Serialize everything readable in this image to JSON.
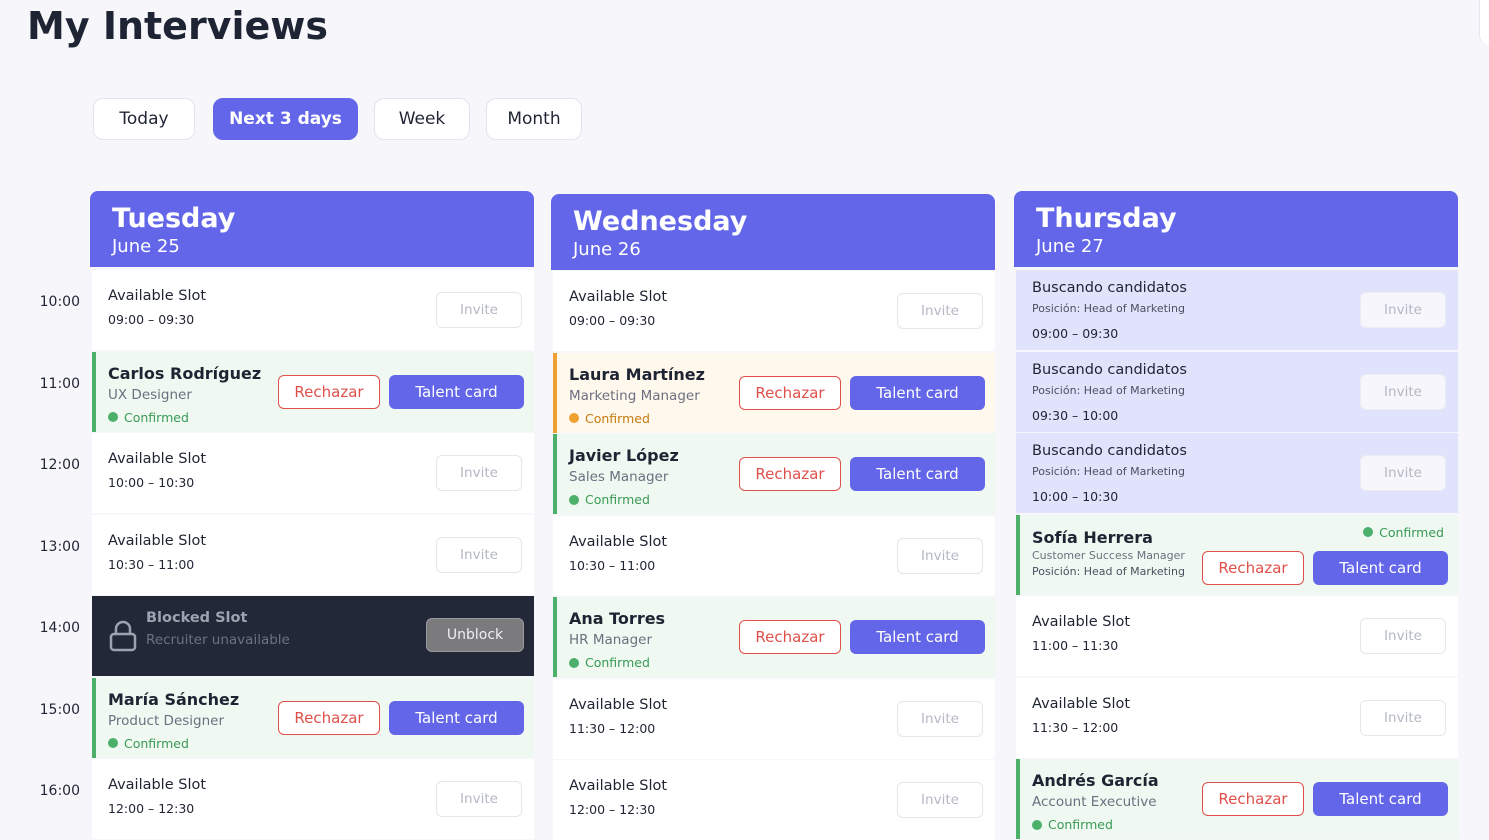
{
  "header": {
    "title": "My Interviews"
  },
  "tabs": [
    {
      "label": "Today",
      "active": false
    },
    {
      "label": "Next 3 days",
      "active": true
    },
    {
      "label": "Week",
      "active": false
    },
    {
      "label": "Month",
      "active": false
    }
  ],
  "times": [
    "10:00",
    "11:00",
    "12:00",
    "13:00",
    "14:00",
    "15:00",
    "16:00"
  ],
  "days": [
    {
      "name": "Tuesday",
      "date": "June 25",
      "slots": [
        {
          "kind": "available",
          "title": "Available Slot",
          "time": "09:00 – 09:30",
          "action": "Invite"
        },
        {
          "kind": "candidate",
          "accent": "#4caf6a",
          "name": "Carlos Rodríguez",
          "role": "UX Designer",
          "status": "Confirmed",
          "reject": "Rechazar",
          "card": "Talent card"
        },
        {
          "kind": "available",
          "title": "Available Slot",
          "time": "10:00 – 10:30",
          "action": "Invite"
        },
        {
          "kind": "available",
          "title": "Available Slot",
          "time": "10:30 – 11:00",
          "action": "Invite"
        },
        {
          "kind": "blocked",
          "title": "Blocked Slot",
          "subtitle": "Recruiter unavailable",
          "action": "Unblock"
        },
        {
          "kind": "candidate",
          "accent": "#4caf6a",
          "name": "María Sánchez",
          "role": "Product Designer",
          "status": "Confirmed",
          "reject": "Rechazar",
          "card": "Talent card"
        },
        {
          "kind": "available",
          "title": "Available Slot",
          "time": "12:00 – 12:30",
          "action": "Invite"
        }
      ]
    },
    {
      "name": "Wednesday",
      "date": "June 26",
      "slots": [
        {
          "kind": "available",
          "title": "Available Slot",
          "time": "09:00 – 09:30",
          "action": "Invite"
        },
        {
          "kind": "candidate",
          "accent": "#f0a030",
          "name": "Laura Martínez",
          "role": "Marketing Manager",
          "status": "Confirmed",
          "reject": "Rechazar",
          "card": "Talent card"
        },
        {
          "kind": "candidate",
          "accent": "#4caf6a",
          "name": "Javier López",
          "role": "Sales Manager",
          "status": "Confirmed",
          "reject": "Rechazar",
          "card": "Talent card"
        },
        {
          "kind": "available",
          "title": "Available Slot",
          "time": "10:30 – 11:00",
          "action": "Invite"
        },
        {
          "kind": "candidate",
          "accent": "#4caf6a",
          "name": "Ana Torres",
          "role": "HR Manager",
          "status": "Confirmed",
          "reject": "Rechazar",
          "card": "Talent card"
        },
        {
          "kind": "available",
          "title": "Available Slot",
          "time": "11:30 – 12:00",
          "action": "Invite"
        },
        {
          "kind": "available",
          "title": "Available Slot",
          "time": "12:00 – 12:30",
          "action": "Invite"
        }
      ]
    },
    {
      "name": "Thursday",
      "date": "June 27",
      "slots": [
        {
          "kind": "searching",
          "title": "Buscando candidatos",
          "position": "Posición: Head of Marketing",
          "time": "09:00 – 09:30",
          "action": "Invite"
        },
        {
          "kind": "searching",
          "title": "Buscando candidatos",
          "position": "Posición: Head of Marketing",
          "time": "09:30 – 10:00",
          "action": "Invite"
        },
        {
          "kind": "searching",
          "title": "Buscando candidatos",
          "position": "Posición: Head of Marketing",
          "time": "10:00 – 10:30",
          "action": "Invite"
        },
        {
          "kind": "candidate-position",
          "accent": "#4caf6a",
          "name": "Sofía Herrera",
          "role": "Customer Success Manager",
          "position": "Posición: Head of Marketing",
          "status": "Confirmed",
          "reject": "Rechazar",
          "card": "Talent card"
        },
        {
          "kind": "available",
          "title": "Available Slot",
          "time": "11:00 – 11:30",
          "action": "Invite"
        },
        {
          "kind": "available",
          "title": "Available Slot",
          "time": "11:30 – 12:00",
          "action": "Invite"
        },
        {
          "kind": "candidate",
          "accent": "#4caf6a",
          "name": "Andrés García",
          "role": "Account Executive",
          "status": "Confirmed",
          "reject": "Rechazar",
          "card": "Talent card"
        }
      ]
    }
  ]
}
